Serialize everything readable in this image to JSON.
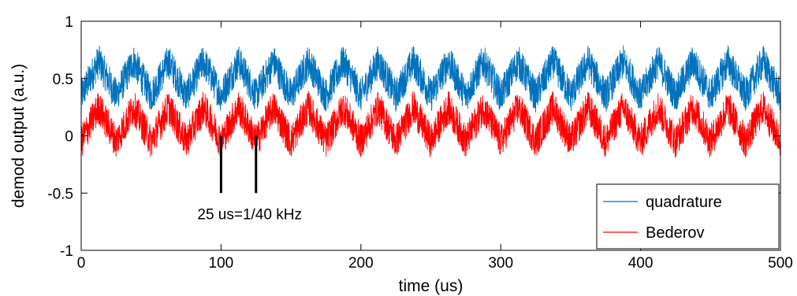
{
  "chart_data": {
    "type": "line",
    "xlabel": "time (us)",
    "ylabel": "demod output (a.u.)",
    "xlim": [
      0,
      500
    ],
    "ylim": [
      -1,
      1
    ],
    "xticks": [
      "0",
      "100",
      "200",
      "300",
      "400",
      "500"
    ],
    "yticks": [
      "1",
      "0.5",
      "0",
      "-0.5",
      "-1"
    ],
    "grid": false,
    "legend_position": "bottom-right",
    "series": [
      {
        "name": "quadrature",
        "color": "#0072bd",
        "model": "offset 0.5, triangle amplitude 0.15, period 25 us, noise band +/-0.15",
        "offset": 0.5,
        "triangle_amplitude": 0.15,
        "period_us": 25,
        "noise_band": 0.15
      },
      {
        "name": "Bederov",
        "color": "#ff0000",
        "model": "offset 0.1, triangle amplitude 0.15, period 25 us, noise band +/-0.15",
        "offset": 0.1,
        "triangle_amplitude": 0.15,
        "period_us": 25,
        "noise_band": 0.15
      }
    ],
    "annotation": {
      "text": "25 us=1/40 kHz",
      "markers_x": [
        100,
        125
      ],
      "marker_y_range": [
        -0.5,
        0
      ]
    }
  }
}
